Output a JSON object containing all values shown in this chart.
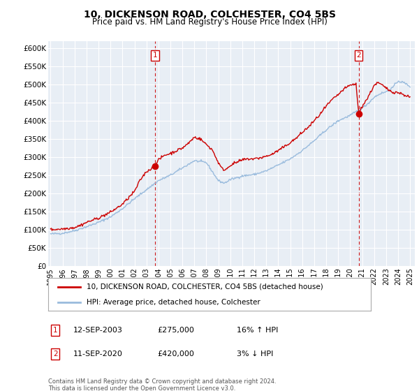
{
  "title1": "10, DICKENSON ROAD, COLCHESTER, CO4 5BS",
  "title2": "Price paid vs. HM Land Registry's House Price Index (HPI)",
  "ylabel_ticks": [
    "£0",
    "£50K",
    "£100K",
    "£150K",
    "£200K",
    "£250K",
    "£300K",
    "£350K",
    "£400K",
    "£450K",
    "£500K",
    "£550K",
    "£600K"
  ],
  "ytick_vals": [
    0,
    50000,
    100000,
    150000,
    200000,
    250000,
    300000,
    350000,
    400000,
    450000,
    500000,
    550000,
    600000
  ],
  "ylim": [
    0,
    620000
  ],
  "xlim_start": 1994.8,
  "xlim_end": 2025.4,
  "xtick_labels": [
    "1995",
    "1996",
    "1997",
    "1998",
    "1999",
    "2000",
    "2001",
    "2002",
    "2003",
    "2004",
    "2005",
    "2006",
    "2007",
    "2008",
    "2009",
    "2010",
    "2011",
    "2012",
    "2013",
    "2014",
    "2015",
    "2016",
    "2017",
    "2018",
    "2019",
    "2020",
    "2021",
    "2022",
    "2023",
    "2024",
    "2025"
  ],
  "transaction1_date": 2003.71,
  "transaction1_price": 275000,
  "transaction1_label": "1",
  "transaction2_date": 2020.71,
  "transaction2_price": 420000,
  "transaction2_label": "2",
  "line_color_price": "#cc0000",
  "line_color_hpi": "#99bbdd",
  "vline_color": "#cc0000",
  "marker_color": "#cc0000",
  "legend_label_price": "10, DICKENSON ROAD, COLCHESTER, CO4 5BS (detached house)",
  "legend_label_hpi": "HPI: Average price, detached house, Colchester",
  "ann1_date": "12-SEP-2003",
  "ann1_price": "£275,000",
  "ann1_hpi": "16% ↑ HPI",
  "ann2_date": "11-SEP-2020",
  "ann2_price": "£420,000",
  "ann2_hpi": "3% ↓ HPI",
  "footer": "Contains HM Land Registry data © Crown copyright and database right 2024.\nThis data is licensed under the Open Government Licence v3.0.",
  "bg_color": "#ffffff",
  "plot_bg_color": "#e8eef5",
  "grid_color": "#ffffff"
}
